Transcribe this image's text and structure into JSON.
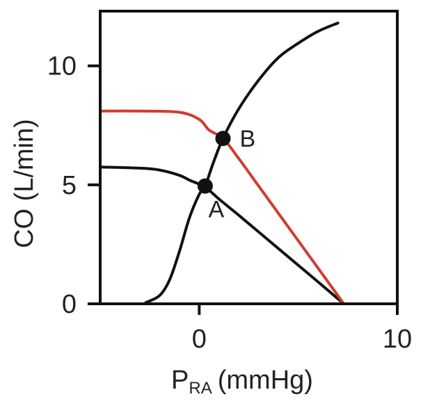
{
  "chart_data": {
    "type": "line",
    "xlabel": {
      "main": "P",
      "subscript": "RA",
      "unit": "(mmHg)"
    },
    "ylabel": "CO (L/min)",
    "xlim": [
      -5,
      10
    ],
    "ylim": [
      0,
      12.3
    ],
    "xticks": [
      {
        "value": 0,
        "label": "0"
      },
      {
        "value": 10,
        "label": "10"
      }
    ],
    "yticks": [
      {
        "value": 0,
        "label": "0"
      },
      {
        "value": 5,
        "label": "5"
      },
      {
        "value": 10,
        "label": "10"
      }
    ],
    "grid": false,
    "series": [
      {
        "color": "#111111",
        "points": [
          [
            -5,
            5.75
          ],
          [
            -3,
            5.7
          ],
          [
            -2,
            5.62
          ],
          [
            -1,
            5.4
          ],
          [
            -0.5,
            5.2
          ],
          [
            0.3,
            4.9
          ],
          [
            1,
            4.4
          ],
          [
            2,
            3.72
          ],
          [
            3,
            3.02
          ],
          [
            4,
            2.32
          ],
          [
            5,
            1.62
          ],
          [
            6,
            0.92
          ],
          [
            7.3,
            0
          ]
        ]
      },
      {
        "color": "#d23b2f",
        "points": [
          [
            -5,
            8.1
          ],
          [
            -3,
            8.1
          ],
          [
            -1,
            8.05
          ],
          [
            0,
            7.75
          ],
          [
            0.5,
            7.3
          ],
          [
            1.2,
            6.95
          ],
          [
            2,
            6.1
          ],
          [
            3,
            4.95
          ],
          [
            4,
            3.8
          ],
          [
            5,
            2.65
          ],
          [
            6,
            1.5
          ],
          [
            7.3,
            0
          ]
        ]
      },
      {
        "color": "#111111",
        "points": [
          [
            -2.7,
            0.05
          ],
          [
            -2,
            0.35
          ],
          [
            -1.5,
            1.0
          ],
          [
            -1,
            2.2
          ],
          [
            -0.5,
            3.6
          ],
          [
            0,
            4.6
          ],
          [
            0.3,
            4.95
          ],
          [
            0.7,
            5.9
          ],
          [
            1.2,
            6.95
          ],
          [
            2,
            8.2
          ],
          [
            3,
            9.4
          ],
          [
            4,
            10.35
          ],
          [
            5,
            10.95
          ],
          [
            6,
            11.45
          ],
          [
            7,
            11.8
          ]
        ]
      }
    ],
    "points": [
      {
        "label": "A",
        "x": 0.3,
        "y": 4.95,
        "label_position": "below"
      },
      {
        "label": "B",
        "x": 1.2,
        "y": 6.95,
        "label_position": "right"
      }
    ]
  }
}
